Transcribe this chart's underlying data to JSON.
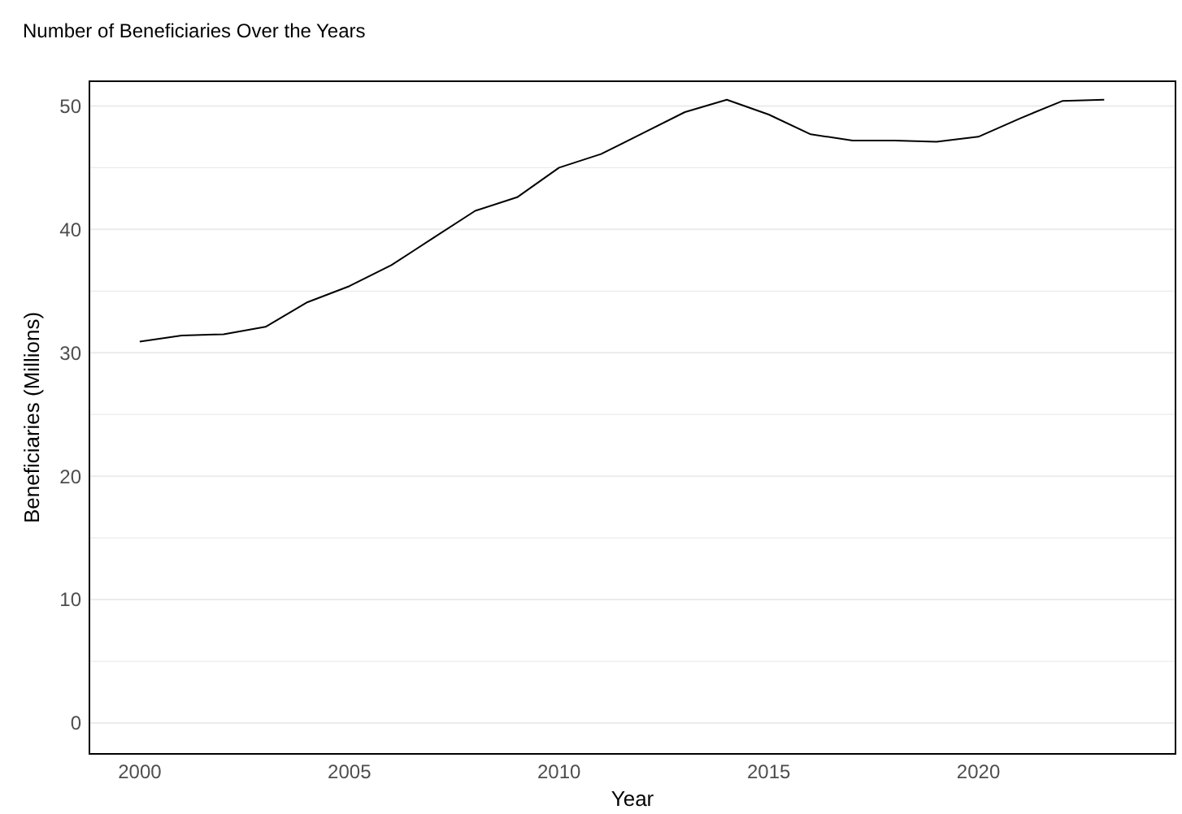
{
  "chart_data": {
    "type": "line",
    "title": "Number of Beneficiaries Over the Years",
    "xlabel": "Year",
    "ylabel": "Beneficiaries (Millions)",
    "x": [
      2000,
      2001,
      2002,
      2003,
      2004,
      2005,
      2006,
      2007,
      2008,
      2009,
      2010,
      2011,
      2012,
      2013,
      2014,
      2015,
      2016,
      2017,
      2018,
      2019,
      2020,
      2021,
      2022,
      2023
    ],
    "series": [
      {
        "color": "#000000",
        "values": [
          30.9,
          31.4,
          31.5,
          32.1,
          34.1,
          35.4,
          37.1,
          39.3,
          41.5,
          42.6,
          45.0,
          46.1,
          47.8,
          49.5,
          50.5,
          49.3,
          47.7,
          47.2,
          47.2,
          47.1,
          47.5,
          49.0,
          50.4,
          50.5
        ]
      }
    ],
    "xlim": [
      1998.8,
      2024.7
    ],
    "xticks": [
      2000,
      2005,
      2010,
      2015,
      2020
    ],
    "ylim": [
      -2.5,
      52
    ],
    "yticks": [
      0,
      {
        "value": 5,
        "label": null
      },
      10,
      {
        "value": 15,
        "label": null
      },
      20,
      {
        "value": 25,
        "label": null
      },
      30,
      {
        "value": 35,
        "label": null
      },
      40,
      {
        "value": 45,
        "label": null
      },
      50
    ],
    "grid": "y",
    "marker": "none",
    "line_style": "solid"
  }
}
